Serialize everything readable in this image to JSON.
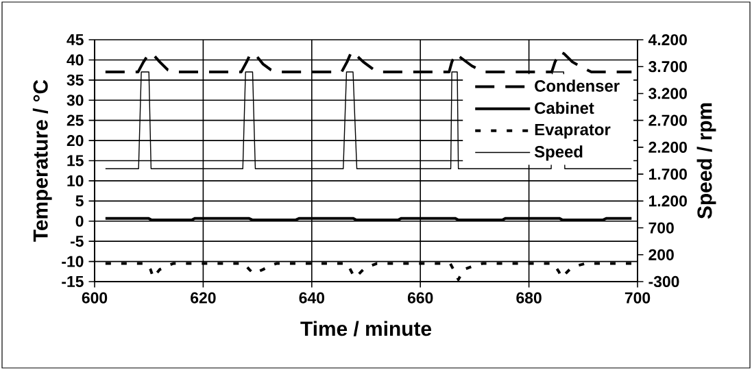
{
  "chart_data": {
    "type": "line",
    "xlabel": "Time / minute",
    "ylabel": "Temperature / °C",
    "y2label": "Speed / rpm",
    "xlim": [
      600,
      700
    ],
    "xticks": [
      600,
      620,
      640,
      660,
      680,
      700
    ],
    "ylim": [
      -15,
      45
    ],
    "yticks": [
      -15,
      -10,
      -5,
      0,
      5,
      10,
      15,
      20,
      25,
      30,
      35,
      40,
      45
    ],
    "y2lim": [
      -300,
      4200
    ],
    "y2ticks": [
      {
        "value": 4200,
        "label": "4.200"
      },
      {
        "value": 3700,
        "label": "3.700"
      },
      {
        "value": 3200,
        "label": "3.200"
      },
      {
        "value": 2700,
        "label": "2.700"
      },
      {
        "value": 2200,
        "label": "2.200"
      },
      {
        "value": 1700,
        "label": "1.700"
      },
      {
        "value": 1200,
        "label": "1.200"
      },
      {
        "value": 700,
        "label": "700"
      },
      {
        "value": 200,
        "label": "200"
      },
      {
        "value": -300,
        "label": "-300"
      }
    ],
    "grid": true,
    "legend": "right",
    "marker": "none",
    "series": [
      {
        "name": "Condenser",
        "color": "#000000",
        "line_style": "dashed",
        "x": [
          602,
          608,
          609,
          610,
          611,
          612,
          613.5,
          614.5,
          627,
          628,
          628.7,
          629.8,
          631,
          632.5,
          633.5,
          645.5,
          646.5,
          647.3,
          648.3,
          649.5,
          651.5,
          652.5,
          665.3,
          665.8,
          666.5,
          667.5,
          669.5,
          671,
          672,
          684.2,
          684.8,
          685.8,
          686.5,
          688,
          690,
          691.5,
          698.9
        ],
        "values": [
          37,
          37,
          39.5,
          41.5,
          41,
          39.5,
          37.5,
          37,
          37,
          39.5,
          41.5,
          41,
          39,
          37.5,
          37,
          37,
          39.5,
          42,
          41,
          39.5,
          37.5,
          37,
          37,
          39.5,
          41.5,
          40.5,
          38.5,
          37.5,
          37,
          37,
          39.5,
          42,
          41.5,
          39.5,
          38,
          37,
          37
        ]
      },
      {
        "name": "Cabinet",
        "color": "#000000",
        "line_style": "solid",
        "x": [
          602,
          609.9,
          610.5,
          617.9,
          618.5,
          628.4,
          629.1,
          637,
          637.7,
          647.6,
          648.2,
          655.9,
          656.5,
          666.4,
          667,
          675.1,
          675.7,
          685.6,
          686.2,
          693.6,
          694.3,
          698.9
        ],
        "values": [
          0.7,
          0.7,
          0.3,
          0.3,
          0.7,
          0.7,
          0.3,
          0.3,
          0.7,
          0.7,
          0.3,
          0.3,
          0.7,
          0.7,
          0.3,
          0.3,
          0.7,
          0.7,
          0.3,
          0.3,
          0.7,
          0.7
        ]
      },
      {
        "name": "Evaprator",
        "color": "#000000",
        "line_style": "dotted",
        "x": [
          602,
          609.5,
          610.3,
          610.8,
          612,
          613.5,
          614.5,
          627.5,
          628.5,
          629.3,
          631,
          632.5,
          633.5,
          646.5,
          647.5,
          648,
          649.5,
          651,
          652,
          665.5,
          666.5,
          667,
          668,
          670,
          671.5,
          684.5,
          685.5,
          686,
          687.5,
          689,
          690.5,
          698.9
        ],
        "values": [
          -10.5,
          -10.5,
          -12,
          -14,
          -12,
          -11,
          -10.5,
          -10.5,
          -12,
          -13,
          -12,
          -11,
          -10.5,
          -10.5,
          -13,
          -14,
          -12,
          -11,
          -10.5,
          -10.5,
          -13,
          -14.5,
          -12,
          -11,
          -10.5,
          -10.5,
          -12.5,
          -14,
          -12,
          -11,
          -10.5,
          -10.5
        ]
      },
      {
        "name": "Speed",
        "color": "#000000",
        "line_style": "solid",
        "axis": "y2",
        "x": [
          602,
          608.1,
          608.6,
          610,
          610.4,
          627.3,
          627.8,
          629.1,
          629.6,
          645.8,
          646.4,
          647.6,
          648.3,
          665.6,
          665.8,
          666.8,
          667,
          684.1,
          684.3,
          686.4,
          686.6,
          698.9
        ],
        "values": [
          1800,
          1800,
          3600,
          3600,
          1800,
          1800,
          3600,
          3600,
          1800,
          1800,
          3600,
          3600,
          1800,
          1800,
          3600,
          3600,
          1800,
          1800,
          3600,
          3600,
          1800,
          1800
        ]
      }
    ]
  }
}
